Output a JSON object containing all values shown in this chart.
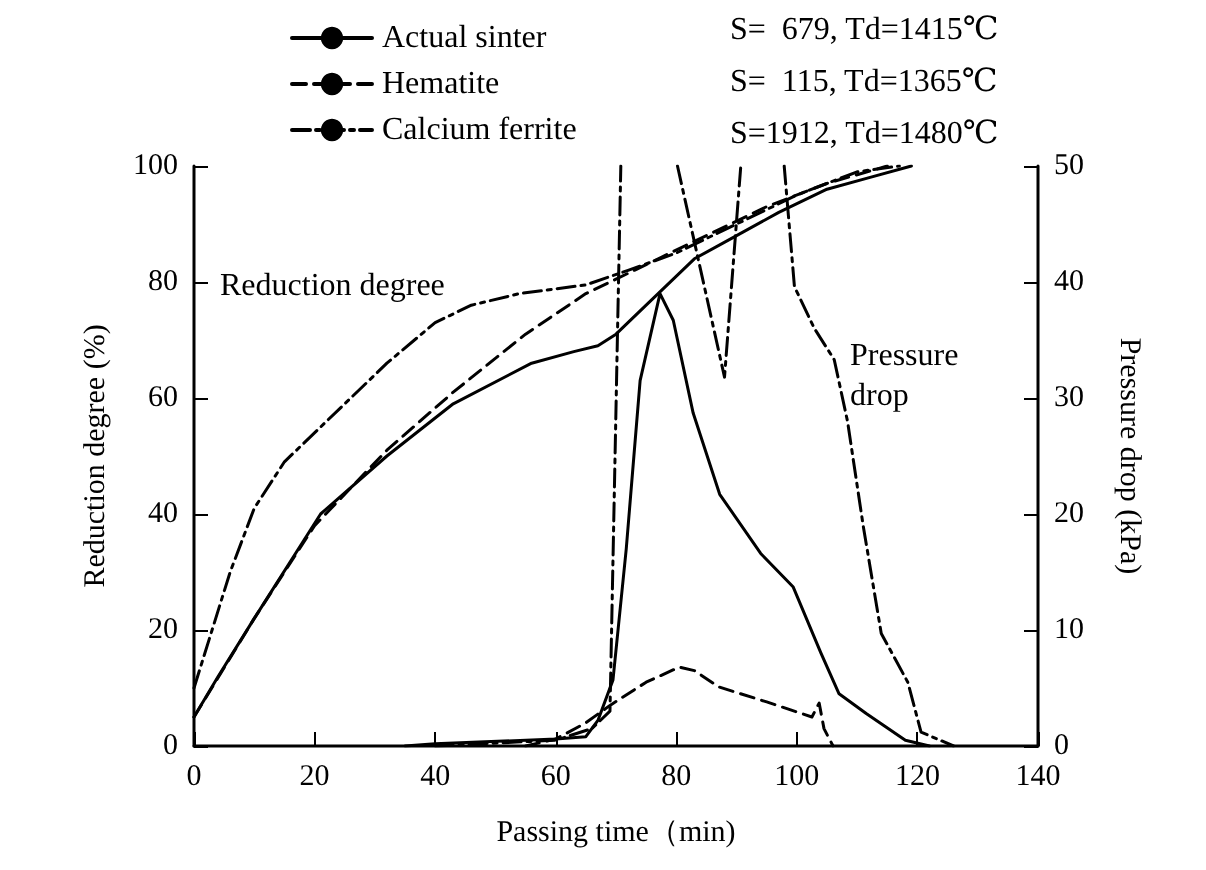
{
  "chart_data": {
    "type": "line",
    "xlabel": "Passing time（min)",
    "ylabel": "Reduction degree (%)",
    "y2label": "Pressure drop (kPa)",
    "xlim": [
      0,
      140
    ],
    "xticks": [
      0,
      20,
      40,
      60,
      80,
      100,
      120,
      140
    ],
    "ylim": [
      0,
      100
    ],
    "yticks": [
      0,
      20,
      40,
      60,
      80,
      100
    ],
    "y2lim": [
      0,
      50
    ],
    "y2ticks": [
      0,
      10,
      20,
      30,
      40,
      50
    ],
    "grid": false,
    "legend": "top",
    "marker": "none",
    "annotations": [
      "S=  679, Td=1415℃",
      "S=  115, Td=1365℃",
      "S=1912, Td=1480℃",
      "Reduction degree",
      "Pressure\ndrop"
    ],
    "series": [
      {
        "name": "Actual sinter",
        "color": "#000000",
        "line_style": "solid",
        "x": [
          0,
          4,
          10,
          21,
          32,
          43,
          56,
          63,
          67,
          70,
          75,
          83,
          90,
          97,
          105,
          112,
          119
        ],
        "values": [
          5,
          12,
          22,
          40,
          50,
          59,
          66,
          68,
          69,
          71,
          76,
          84,
          88,
          92,
          96,
          98,
          100
        ]
      },
      {
        "name": "Hematite",
        "color": "#000000",
        "line_style": "dashed",
        "x": [
          0,
          10,
          20,
          32,
          43,
          55,
          65,
          75,
          85,
          95,
          105,
          115
        ],
        "values": [
          5,
          22,
          38,
          51,
          61,
          71,
          78,
          83,
          88,
          93,
          97,
          100
        ]
      },
      {
        "name": "Calcium ferrite",
        "color": "#000000",
        "line_style": "dashdot",
        "x": [
          0,
          3,
          6,
          10,
          15,
          21,
          32,
          40,
          46,
          54,
          65,
          72,
          80,
          90,
          100,
          110,
          117
        ],
        "values": [
          10,
          20,
          30,
          41,
          49,
          55,
          66,
          73,
          76,
          78,
          79.5,
          82,
          85,
          90,
          95,
          99,
          100
        ]
      },
      {
        "color": "#000000",
        "line_style": "solid",
        "axis": "y2",
        "x": [
          35,
          40,
          60,
          65,
          67,
          69.5,
          71.7,
          74,
          77.3,
          79.5,
          82.8,
          87.2,
          94,
          99.4,
          104,
          107,
          111.5,
          118,
          122
        ],
        "values": [
          0,
          0.2,
          0.6,
          0.8,
          2.2,
          5.7,
          17,
          31.5,
          39,
          36.7,
          28.7,
          21.7,
          16.6,
          13.7,
          8,
          4.5,
          2.8,
          0.5,
          0
        ]
      },
      {
        "color": "#000000",
        "line_style": "dashed",
        "axis": "y2",
        "x": [
          55,
          60,
          65,
          69,
          75,
          80.5,
          83,
          87,
          95,
          102.5,
          103.7,
          104.5,
          106
        ],
        "values": [
          0,
          0.6,
          2,
          3.5,
          5.5,
          6.8,
          6.5,
          5.1,
          3.8,
          2.5,
          3.7,
          1.5,
          0
        ]
      },
      {
        "color": "#000000",
        "line_style": "dashdot",
        "axis": "y2",
        "x": [
          40,
          60,
          66,
          69,
          70.8,
          75,
          80.2,
          88,
          90.7,
          94,
          97.9,
          99.6,
          102.9,
          106.2,
          108.4,
          111,
          114,
          118.4,
          120.6,
          126
        ],
        "values": [
          0,
          0.5,
          1.5,
          3,
          50,
          null,
          50,
          31.8,
          50,
          null,
          50,
          39.6,
          36,
          33.3,
          28,
          19,
          9.7,
          5.5,
          1.2,
          0
        ]
      }
    ]
  }
}
